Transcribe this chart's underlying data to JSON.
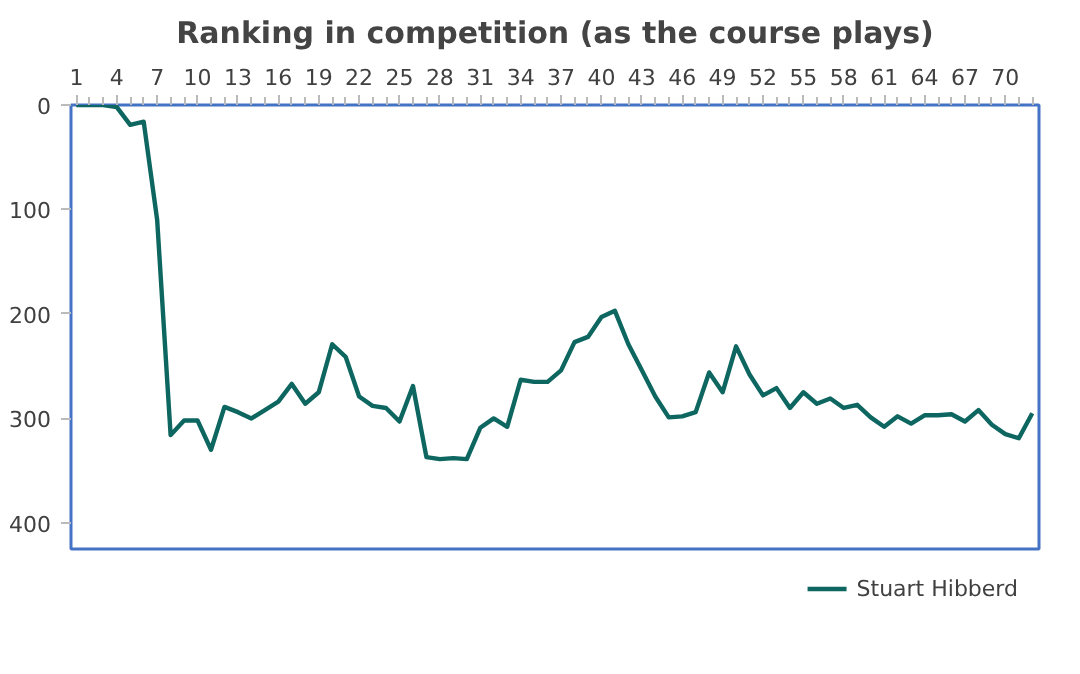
{
  "chart_data": {
    "type": "line",
    "title": "Ranking in competition (as the course plays)",
    "x": [
      1,
      2,
      3,
      4,
      5,
      6,
      7,
      8,
      9,
      10,
      11,
      12,
      13,
      14,
      15,
      16,
      17,
      18,
      19,
      20,
      21,
      22,
      23,
      24,
      25,
      26,
      27,
      28,
      29,
      30,
      31,
      32,
      33,
      34,
      35,
      36,
      37,
      38,
      39,
      40,
      41,
      42,
      43,
      44,
      45,
      46,
      47,
      48,
      49,
      50,
      51,
      52,
      53,
      54,
      55,
      56,
      57,
      58,
      59,
      60,
      61,
      62,
      63,
      64,
      65,
      66,
      67,
      68,
      69,
      70,
      71,
      72
    ],
    "xlim": [
      0.6,
      72.5
    ],
    "xticks": [
      1,
      4,
      7,
      10,
      13,
      16,
      19,
      22,
      25,
      28,
      31,
      34,
      37,
      40,
      43,
      46,
      49,
      52,
      55,
      58,
      61,
      64,
      67,
      70
    ],
    "ylim": [
      425,
      0
    ],
    "yticks": [
      0,
      100,
      200,
      300,
      400
    ],
    "series": [
      {
        "name": "Stuart Hibberd",
        "color": "#0e6660",
        "values": [
          0,
          0,
          0,
          2,
          19,
          16,
          110,
          316,
          302,
          302,
          330,
          289,
          294,
          300,
          292,
          284,
          267,
          286,
          275,
          229,
          241,
          279,
          288,
          290,
          303,
          269,
          337,
          339,
          338,
          339,
          309,
          300,
          308,
          263,
          265,
          265,
          254,
          227,
          222,
          203,
          197,
          229,
          254,
          279,
          299,
          298,
          294,
          256,
          275,
          231,
          258,
          278,
          271,
          290,
          275,
          286,
          281,
          290,
          287,
          299,
          308,
          298,
          305,
          297,
          297,
          296,
          303,
          292,
          306,
          315,
          319,
          295
        ]
      }
    ],
    "grid": false,
    "legend": "bottom",
    "marker": "none",
    "line_style": "solid"
  }
}
